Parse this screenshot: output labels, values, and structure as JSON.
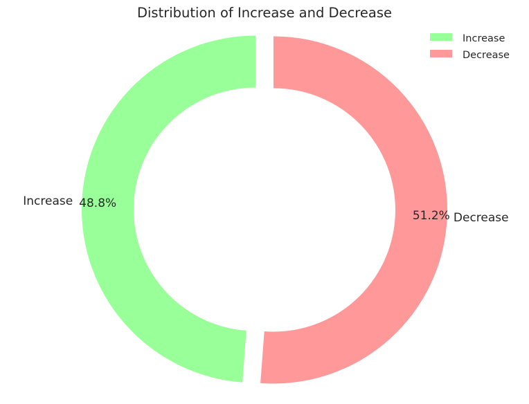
{
  "chart_data": {
    "type": "pie",
    "style": "donut",
    "title": "Distribution of Increase and Decrease",
    "categories": [
      "Increase",
      "Decrease"
    ],
    "values": [
      48.8,
      51.2
    ],
    "value_labels": [
      "48.8%",
      "51.2%"
    ],
    "colors": [
      "#99ff99",
      "#ff9999"
    ],
    "start_angle_deg": 90,
    "exploded": true,
    "legend": {
      "position": "top-right",
      "entries": [
        "Increase",
        "Decrease"
      ]
    }
  }
}
